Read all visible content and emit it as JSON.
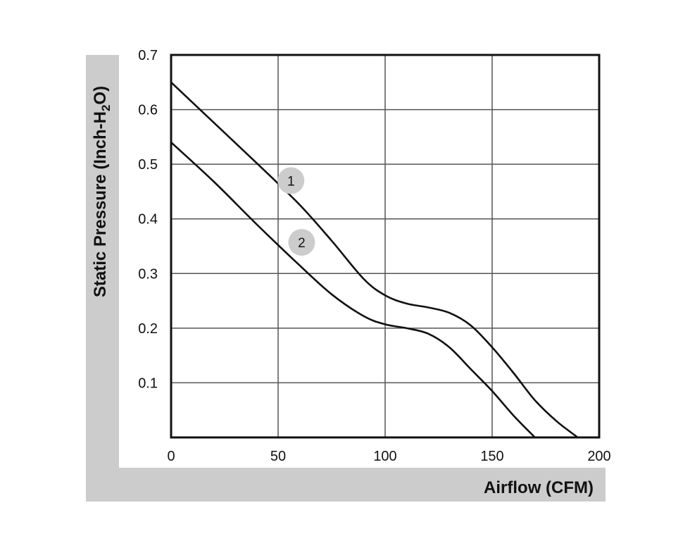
{
  "chart_data": {
    "type": "line",
    "xlabel": "Airflow (CFM)",
    "ylabel_parts": [
      "Static Pressure (Inch-H",
      "2",
      "O)"
    ],
    "xlim": [
      0,
      200
    ],
    "ylim": [
      0,
      0.7
    ],
    "x_ticks": [
      {
        "value": 0,
        "label": "0"
      },
      {
        "value": 50,
        "label": "50"
      },
      {
        "value": 100,
        "label": "100"
      },
      {
        "value": 150,
        "label": "150"
      },
      {
        "value": 200,
        "label": "200"
      }
    ],
    "y_ticks": [
      {
        "value": 0.1,
        "label": "0.1"
      },
      {
        "value": 0.2,
        "label": "0.2"
      },
      {
        "value": 0.3,
        "label": "0.3"
      },
      {
        "value": 0.4,
        "label": "0.4"
      },
      {
        "value": 0.5,
        "label": "0.5"
      },
      {
        "value": 0.6,
        "label": "0.6"
      },
      {
        "value": 0.7,
        "label": "0.7"
      }
    ],
    "grid": true,
    "series": [
      {
        "marker_label": "1",
        "marker_at": [
          56,
          0.47
        ],
        "points": [
          [
            0,
            0.65
          ],
          [
            20,
            0.576
          ],
          [
            40,
            0.502
          ],
          [
            60,
            0.426
          ],
          [
            75,
            0.36
          ],
          [
            90,
            0.29
          ],
          [
            100,
            0.26
          ],
          [
            110,
            0.245
          ],
          [
            120,
            0.238
          ],
          [
            130,
            0.228
          ],
          [
            140,
            0.205
          ],
          [
            150,
            0.165
          ],
          [
            160,
            0.118
          ],
          [
            170,
            0.068
          ],
          [
            180,
            0.03
          ],
          [
            190,
            0.0
          ]
        ]
      },
      {
        "marker_label": "2",
        "marker_at": [
          61,
          0.357
        ],
        "points": [
          [
            0,
            0.54
          ],
          [
            20,
            0.468
          ],
          [
            40,
            0.39
          ],
          [
            60,
            0.315
          ],
          [
            75,
            0.262
          ],
          [
            90,
            0.222
          ],
          [
            100,
            0.207
          ],
          [
            110,
            0.2
          ],
          [
            120,
            0.19
          ],
          [
            130,
            0.165
          ],
          [
            140,
            0.125
          ],
          [
            150,
            0.085
          ],
          [
            160,
            0.04
          ],
          [
            170,
            0.0
          ]
        ]
      }
    ]
  }
}
